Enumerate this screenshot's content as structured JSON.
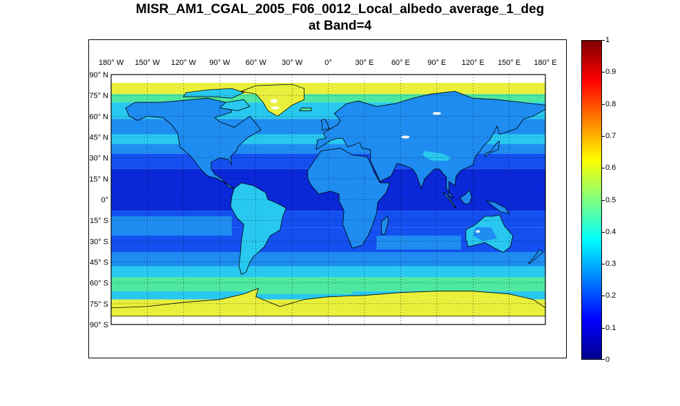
{
  "title": {
    "line1": "MISR_AM1_CGAL_2005_F06_0012_Local_albedo_average_1_deg",
    "line2": "at Band=4"
  },
  "map": {
    "lon_ticks": [
      "180° W",
      "150° W",
      "120° W",
      "90° W",
      "60° W",
      "30° W",
      "0°",
      "30° E",
      "60° E",
      "90° E",
      "120° E",
      "150° E",
      "180° E"
    ],
    "lat_ticks": [
      "90° N",
      "75° N",
      "60° N",
      "45° N",
      "30° N",
      "15° N",
      "0°",
      "15° S",
      "30° S",
      "45° S",
      "60° S",
      "75° S",
      "90° S"
    ],
    "grid": true,
    "missing_data_color": "#ffffff",
    "colors": {
      "yellow": "#e8f03c",
      "green": "#4ee8a0",
      "cyan": "#28c8f0",
      "light_blue": "#1e8cf0",
      "blue": "#1450f0",
      "dark_blue": "#0a28d8",
      "coast": "#000000"
    }
  },
  "colorbar": {
    "min": 0,
    "max": 1,
    "tick_labels": [
      "0",
      "0.1",
      "0.2",
      "0.3",
      "0.4",
      "0.5",
      "0.6",
      "0.7",
      "0.8",
      "0.9",
      "1"
    ],
    "colormap": "jet"
  }
}
